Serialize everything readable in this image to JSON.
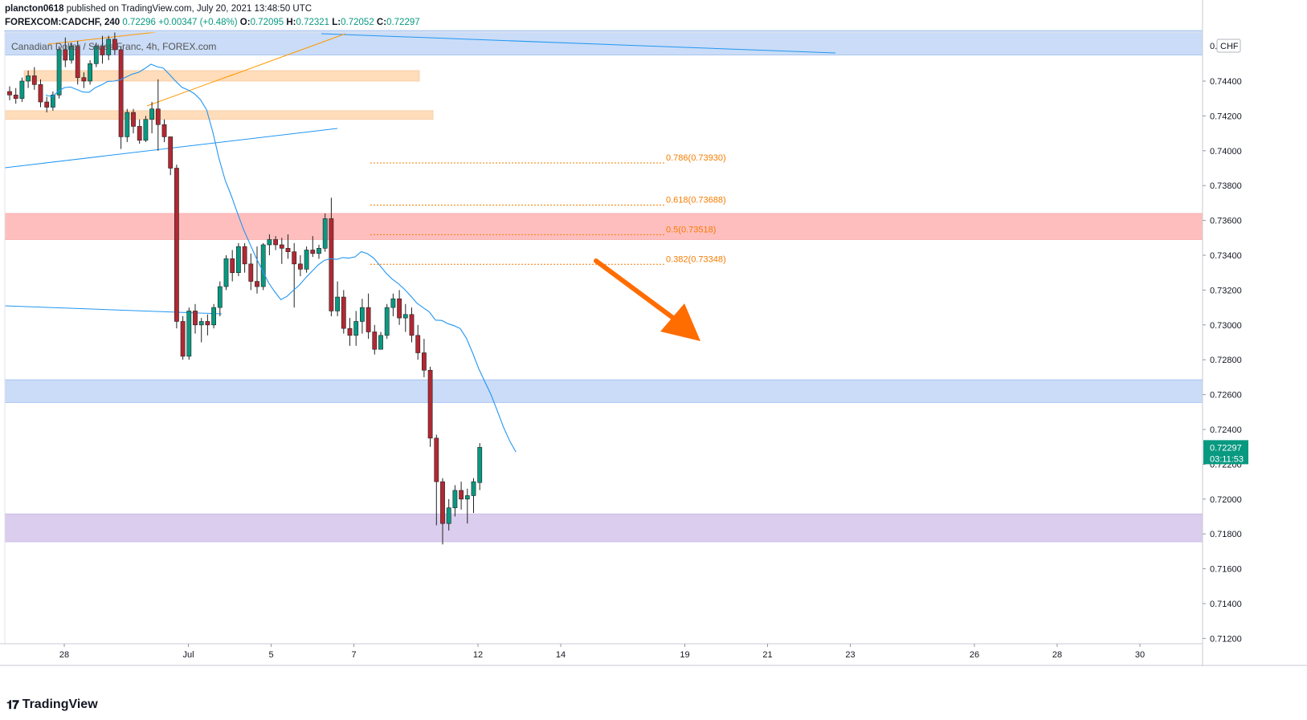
{
  "header": {
    "author": "plancton0618",
    "published_text": "published on TradingView.com, July 20, 2021 13:48:50 UTC",
    "symbol": "FOREXCOM:CADCHF, 240",
    "price": "0.72296",
    "change": "+0.00347 (+0.48%)",
    "ohlc": [
      {
        "label": "O:",
        "value": "0.72095"
      },
      {
        "label": "H:",
        "value": "0.72321"
      },
      {
        "label": "L:",
        "value": "0.72052"
      },
      {
        "label": "C:",
        "value": "0.72297"
      }
    ],
    "series_title": "Canadian Dollar / Swiss Franc, 4h, FOREX.com"
  },
  "price_axis": {
    "currency": "CHF",
    "last_price": "0.72297",
    "countdown": "03:11:53",
    "last_price_color": "#089981"
  },
  "footer": {
    "brand": "TradingView"
  },
  "colors": {
    "up": "#089981",
    "down": "#b22833",
    "ma": "#2196f3",
    "fib": "#f57c00",
    "arrow": "#ff6d00",
    "zone_blue": "#c5d9f7",
    "zone_red": "#ffb8b8",
    "zone_orange": "#ffd9b3",
    "zone_purple": "#d6c8ec"
  },
  "chart_data": {
    "type": "candlestick",
    "instrument": "CADCHF",
    "timeframe": "240",
    "ylim": [
      0.7115,
      0.7465
    ],
    "y_ticks": [
      "0.74400",
      "0.74200",
      "0.74000",
      "0.73800",
      "0.73600",
      "0.73400",
      "0.73200",
      "0.73000",
      "0.72800",
      "0.72600",
      "0.72400",
      "0.72200",
      "0.72000",
      "0.71800",
      "0.71600",
      "0.71400",
      "0.71200"
    ],
    "x_ticks": [
      {
        "label": "28",
        "day": 0
      },
      {
        "label": "Jul",
        "day": 3
      },
      {
        "label": "5",
        "day": 5
      },
      {
        "label": "7",
        "day": 7
      },
      {
        "label": "12",
        "day": 10
      },
      {
        "label": "14",
        "day": 12
      },
      {
        "label": "19",
        "day": 15
      },
      {
        "label": "21",
        "day": 17
      },
      {
        "label": "23",
        "day": 19
      },
      {
        "label": "26",
        "day": 22
      },
      {
        "label": "28",
        "day": 24
      },
      {
        "label": "30",
        "day": 26
      }
    ],
    "zones": [
      {
        "name": "resistance-blue-top",
        "from": 0.7455,
        "to": 0.7469,
        "color": "#c5d9f7"
      },
      {
        "name": "orange-zone-1",
        "from": 0.744,
        "to": 0.7446,
        "color": "#ffd9b3"
      },
      {
        "name": "orange-zone-2",
        "from": 0.7418,
        "to": 0.7423,
        "color": "#ffd9b3"
      },
      {
        "name": "red-zone",
        "from": 0.7349,
        "to": 0.7364,
        "color": "#ffb8b8"
      },
      {
        "name": "blue-zone",
        "from": 0.72555,
        "to": 0.72685,
        "color": "#c5d9f7"
      },
      {
        "name": "purple-zone",
        "from": 0.71755,
        "to": 0.71915,
        "color": "#d6c8ec"
      }
    ],
    "fib_levels": [
      {
        "ratio": "0.786",
        "label": "0.786(0.73930)",
        "price": 0.7393
      },
      {
        "ratio": "0.618",
        "label": "0.618(0.73688)",
        "price": 0.73688
      },
      {
        "ratio": "0.5",
        "label": "0.5(0.73518)",
        "price": 0.73518
      },
      {
        "ratio": "0.382",
        "label": "0.382(0.73348)",
        "price": 0.73348
      }
    ],
    "candles": [
      {
        "o": 0.7434,
        "h": 0.7437,
        "l": 0.7429,
        "c": 0.7432
      },
      {
        "o": 0.7432,
        "h": 0.7436,
        "l": 0.7427,
        "c": 0.743
      },
      {
        "o": 0.743,
        "h": 0.7442,
        "l": 0.7428,
        "c": 0.744
      },
      {
        "o": 0.744,
        "h": 0.7446,
        "l": 0.7436,
        "c": 0.7443
      },
      {
        "o": 0.7443,
        "h": 0.7448,
        "l": 0.7435,
        "c": 0.7438
      },
      {
        "o": 0.7438,
        "h": 0.7441,
        "l": 0.7425,
        "c": 0.7428
      },
      {
        "o": 0.7428,
        "h": 0.7431,
        "l": 0.7422,
        "c": 0.7425
      },
      {
        "o": 0.7425,
        "h": 0.7434,
        "l": 0.7423,
        "c": 0.7432
      },
      {
        "o": 0.7432,
        "h": 0.746,
        "l": 0.743,
        "c": 0.7458
      },
      {
        "o": 0.7458,
        "h": 0.7465,
        "l": 0.7448,
        "c": 0.7452
      },
      {
        "o": 0.7452,
        "h": 0.7462,
        "l": 0.745,
        "c": 0.746
      },
      {
        "o": 0.746,
        "h": 0.7463,
        "l": 0.7438,
        "c": 0.7442
      },
      {
        "o": 0.7442,
        "h": 0.7445,
        "l": 0.7436,
        "c": 0.744
      },
      {
        "o": 0.744,
        "h": 0.7452,
        "l": 0.7438,
        "c": 0.745
      },
      {
        "o": 0.745,
        "h": 0.7462,
        "l": 0.7448,
        "c": 0.746
      },
      {
        "o": 0.746,
        "h": 0.7466,
        "l": 0.745,
        "c": 0.7455
      },
      {
        "o": 0.7455,
        "h": 0.7466,
        "l": 0.7452,
        "c": 0.7464
      },
      {
        "o": 0.7464,
        "h": 0.7468,
        "l": 0.7455,
        "c": 0.7458
      },
      {
        "o": 0.7458,
        "h": 0.746,
        "l": 0.7401,
        "c": 0.7408
      },
      {
        "o": 0.7408,
        "h": 0.7424,
        "l": 0.7405,
        "c": 0.7422
      },
      {
        "o": 0.7422,
        "h": 0.7424,
        "l": 0.741,
        "c": 0.7414
      },
      {
        "o": 0.7414,
        "h": 0.7418,
        "l": 0.7404,
        "c": 0.7406
      },
      {
        "o": 0.7406,
        "h": 0.742,
        "l": 0.7405,
        "c": 0.7418
      },
      {
        "o": 0.7418,
        "h": 0.7428,
        "l": 0.741,
        "c": 0.7424
      },
      {
        "o": 0.7424,
        "h": 0.7441,
        "l": 0.74,
        "c": 0.7415
      },
      {
        "o": 0.7415,
        "h": 0.7418,
        "l": 0.7405,
        "c": 0.7408
      },
      {
        "o": 0.7408,
        "h": 0.7408,
        "l": 0.7386,
        "c": 0.739
      },
      {
        "o": 0.739,
        "h": 0.7392,
        "l": 0.7298,
        "c": 0.7302
      },
      {
        "o": 0.7302,
        "h": 0.7305,
        "l": 0.728,
        "c": 0.7282
      },
      {
        "o": 0.7282,
        "h": 0.731,
        "l": 0.728,
        "c": 0.7308
      },
      {
        "o": 0.7308,
        "h": 0.7312,
        "l": 0.7295,
        "c": 0.73
      },
      {
        "o": 0.73,
        "h": 0.7304,
        "l": 0.729,
        "c": 0.7302
      },
      {
        "o": 0.7302,
        "h": 0.7306,
        "l": 0.7294,
        "c": 0.73
      },
      {
        "o": 0.73,
        "h": 0.7312,
        "l": 0.7298,
        "c": 0.731
      },
      {
        "o": 0.731,
        "h": 0.7325,
        "l": 0.7305,
        "c": 0.7322
      },
      {
        "o": 0.7322,
        "h": 0.734,
        "l": 0.732,
        "c": 0.7338
      },
      {
        "o": 0.7338,
        "h": 0.7343,
        "l": 0.7325,
        "c": 0.733
      },
      {
        "o": 0.733,
        "h": 0.7347,
        "l": 0.7328,
        "c": 0.7345
      },
      {
        "o": 0.7345,
        "h": 0.7347,
        "l": 0.733,
        "c": 0.7335
      },
      {
        "o": 0.7335,
        "h": 0.7341,
        "l": 0.732,
        "c": 0.7325
      },
      {
        "o": 0.7325,
        "h": 0.7345,
        "l": 0.7318,
        "c": 0.7322
      },
      {
        "o": 0.7322,
        "h": 0.7347,
        "l": 0.732,
        "c": 0.7346
      },
      {
        "o": 0.7346,
        "h": 0.7352,
        "l": 0.734,
        "c": 0.7349
      },
      {
        "o": 0.7349,
        "h": 0.7351,
        "l": 0.7343,
        "c": 0.7346
      },
      {
        "o": 0.7346,
        "h": 0.735,
        "l": 0.7335,
        "c": 0.7344
      },
      {
        "o": 0.7344,
        "h": 0.7352,
        "l": 0.7338,
        "c": 0.7342
      },
      {
        "o": 0.7342,
        "h": 0.7347,
        "l": 0.731,
        "c": 0.7335
      },
      {
        "o": 0.7335,
        "h": 0.734,
        "l": 0.7328,
        "c": 0.7332
      },
      {
        "o": 0.7332,
        "h": 0.7345,
        "l": 0.733,
        "c": 0.7343
      },
      {
        "o": 0.7343,
        "h": 0.7351,
        "l": 0.7339,
        "c": 0.7341
      },
      {
        "o": 0.7341,
        "h": 0.7346,
        "l": 0.7338,
        "c": 0.7344
      },
      {
        "o": 0.7344,
        "h": 0.7364,
        "l": 0.7342,
        "c": 0.7361
      },
      {
        "o": 0.7361,
        "h": 0.7373,
        "l": 0.7305,
        "c": 0.7308
      },
      {
        "o": 0.7308,
        "h": 0.7325,
        "l": 0.7305,
        "c": 0.7316
      },
      {
        "o": 0.7316,
        "h": 0.732,
        "l": 0.7295,
        "c": 0.7298
      },
      {
        "o": 0.7298,
        "h": 0.7304,
        "l": 0.7288,
        "c": 0.7294
      },
      {
        "o": 0.7294,
        "h": 0.7308,
        "l": 0.7288,
        "c": 0.7302
      },
      {
        "o": 0.7302,
        "h": 0.7315,
        "l": 0.7295,
        "c": 0.731
      },
      {
        "o": 0.731,
        "h": 0.7318,
        "l": 0.7292,
        "c": 0.7296
      },
      {
        "o": 0.7296,
        "h": 0.73,
        "l": 0.7283,
        "c": 0.7286
      },
      {
        "o": 0.7286,
        "h": 0.7296,
        "l": 0.7286,
        "c": 0.7294
      },
      {
        "o": 0.7294,
        "h": 0.7312,
        "l": 0.7292,
        "c": 0.731
      },
      {
        "o": 0.731,
        "h": 0.7318,
        "l": 0.7305,
        "c": 0.7315
      },
      {
        "o": 0.7315,
        "h": 0.732,
        "l": 0.73,
        "c": 0.7304
      },
      {
        "o": 0.7304,
        "h": 0.7312,
        "l": 0.7296,
        "c": 0.7306
      },
      {
        "o": 0.7306,
        "h": 0.731,
        "l": 0.729,
        "c": 0.7294
      },
      {
        "o": 0.7294,
        "h": 0.73,
        "l": 0.728,
        "c": 0.7284
      },
      {
        "o": 0.7284,
        "h": 0.7292,
        "l": 0.727,
        "c": 0.7274
      },
      {
        "o": 0.7274,
        "h": 0.7276,
        "l": 0.723,
        "c": 0.7235
      },
      {
        "o": 0.7235,
        "h": 0.7237,
        "l": 0.7185,
        "c": 0.721
      },
      {
        "o": 0.721,
        "h": 0.7212,
        "l": 0.7174,
        "c": 0.7186
      },
      {
        "o": 0.7186,
        "h": 0.72,
        "l": 0.7182,
        "c": 0.7195
      },
      {
        "o": 0.7195,
        "h": 0.7208,
        "l": 0.719,
        "c": 0.7205
      },
      {
        "o": 0.7205,
        "h": 0.721,
        "l": 0.7194,
        "c": 0.72
      },
      {
        "o": 0.72,
        "h": 0.7206,
        "l": 0.7186,
        "c": 0.7202
      },
      {
        "o": 0.7202,
        "h": 0.7212,
        "l": 0.7192,
        "c": 0.721
      },
      {
        "o": 0.72095,
        "h": 0.72321,
        "l": 0.72052,
        "c": 0.72297
      }
    ]
  }
}
